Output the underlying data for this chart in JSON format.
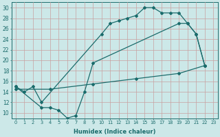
{
  "xlabel": "Humidex (Indice chaleur)",
  "ylabel": "",
  "bg_color": "#cce8e8",
  "grid_color": "#d4b8b8",
  "line_color": "#1a6b6b",
  "xlim": [
    -0.5,
    23.5
  ],
  "ylim": [
    9,
    31
  ],
  "yticks": [
    10,
    12,
    14,
    16,
    18,
    20,
    22,
    24,
    26,
    28,
    30
  ],
  "xticks": [
    0,
    1,
    2,
    3,
    4,
    5,
    6,
    7,
    8,
    9,
    10,
    11,
    12,
    13,
    14,
    15,
    16,
    17,
    18,
    19,
    20,
    21,
    22,
    23
  ],
  "line1_x": [
    0,
    1,
    2,
    3,
    10,
    11,
    12,
    13,
    14,
    15,
    16,
    17,
    18,
    19,
    20,
    21,
    22
  ],
  "line1_y": [
    15,
    14,
    15,
    12,
    25,
    27,
    27.5,
    28,
    28.5,
    30,
    30,
    29,
    29,
    29,
    27,
    25,
    19
  ],
  "line2_x": [
    0,
    3,
    4,
    5,
    6,
    7,
    8,
    9,
    19,
    20,
    21,
    22
  ],
  "line2_y": [
    15,
    11,
    11,
    10.5,
    9,
    9.5,
    14,
    19.5,
    27,
    27,
    25,
    19
  ],
  "line3_x": [
    0,
    4,
    9,
    14,
    19,
    22
  ],
  "line3_y": [
    14.5,
    14.5,
    15.5,
    16.5,
    17.5,
    19
  ],
  "marker_size": 2.0,
  "line_width": 0.9
}
